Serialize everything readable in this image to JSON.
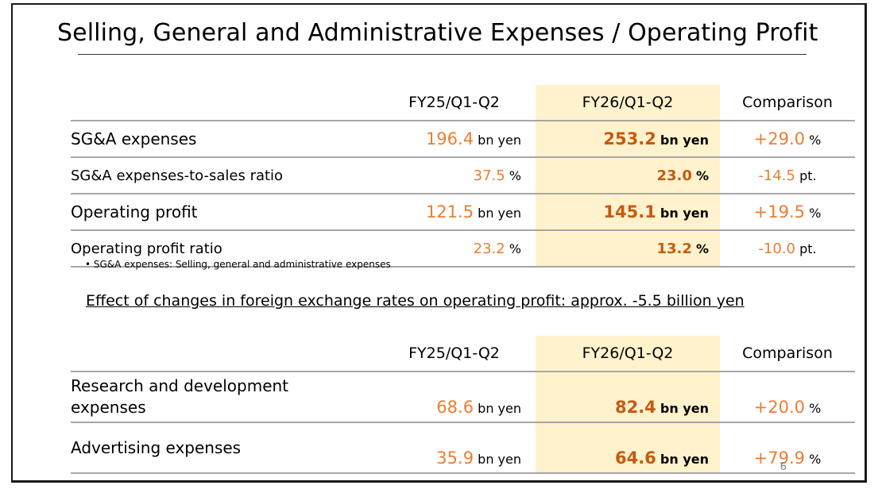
{
  "title": "Selling, General and Administrative Expenses / Operating Profit",
  "table1": {
    "headers": [
      "",
      "FY25/Q1-Q2",
      "FY26/Q1-Q2",
      "Comparison"
    ],
    "rows": [
      {
        "label": "SG&A expenses",
        "fy25": "196.4",
        "fy25_unit": "bn yen",
        "fy26": "253.2",
        "fy26_unit": "bn yen",
        "cmp": "+29.0",
        "cmp_unit": "%"
      },
      {
        "label": "SG&A expenses-to-sales ratio",
        "fy25": "37.5",
        "fy25_unit": "%",
        "fy26": "23.0",
        "fy26_unit": "%",
        "cmp": "-14.5",
        "cmp_unit": "pt."
      },
      {
        "label": "Operating profit",
        "fy25": "121.5",
        "fy25_unit": "bn yen",
        "fy26": "145.1",
        "fy26_unit": "bn yen",
        "cmp": "+19.5",
        "cmp_unit": "%"
      },
      {
        "label": "Operating profit ratio",
        "fy25": "23.2",
        "fy25_unit": "%",
        "fy26": "13.2",
        "fy26_unit": "%",
        "cmp": "-10.0",
        "cmp_unit": "pt."
      }
    ]
  },
  "footnote": "•  SG&A expenses: Selling, general and administrative expenses",
  "fx_note": "Effect of changes in foreign exchange rates on operating profit: approx. -5.5 billion yen",
  "table2": {
    "headers": [
      "",
      "FY25/Q1-Q2",
      "FY26/Q1-Q2",
      "Comparison"
    ],
    "rows": [
      {
        "label_line1": "Research and development",
        "label_line2": "expenses",
        "fy25": "68.6",
        "fy25_unit": "bn yen",
        "fy26": "82.4",
        "fy26_unit": "bn yen",
        "cmp": "+20.0",
        "cmp_unit": "%"
      },
      {
        "label": "Advertising expenses",
        "fy25": "35.9",
        "fy25_unit": "bn yen",
        "fy26": "64.6",
        "fy26_unit": "bn yen",
        "cmp": "+79.9",
        "cmp_unit": "%"
      }
    ]
  },
  "page_number": "6",
  "colors": {
    "accent_orange": "#ed7d31",
    "accent_dark_orange": "#c55a11",
    "highlight_column": "#fff2cc"
  }
}
